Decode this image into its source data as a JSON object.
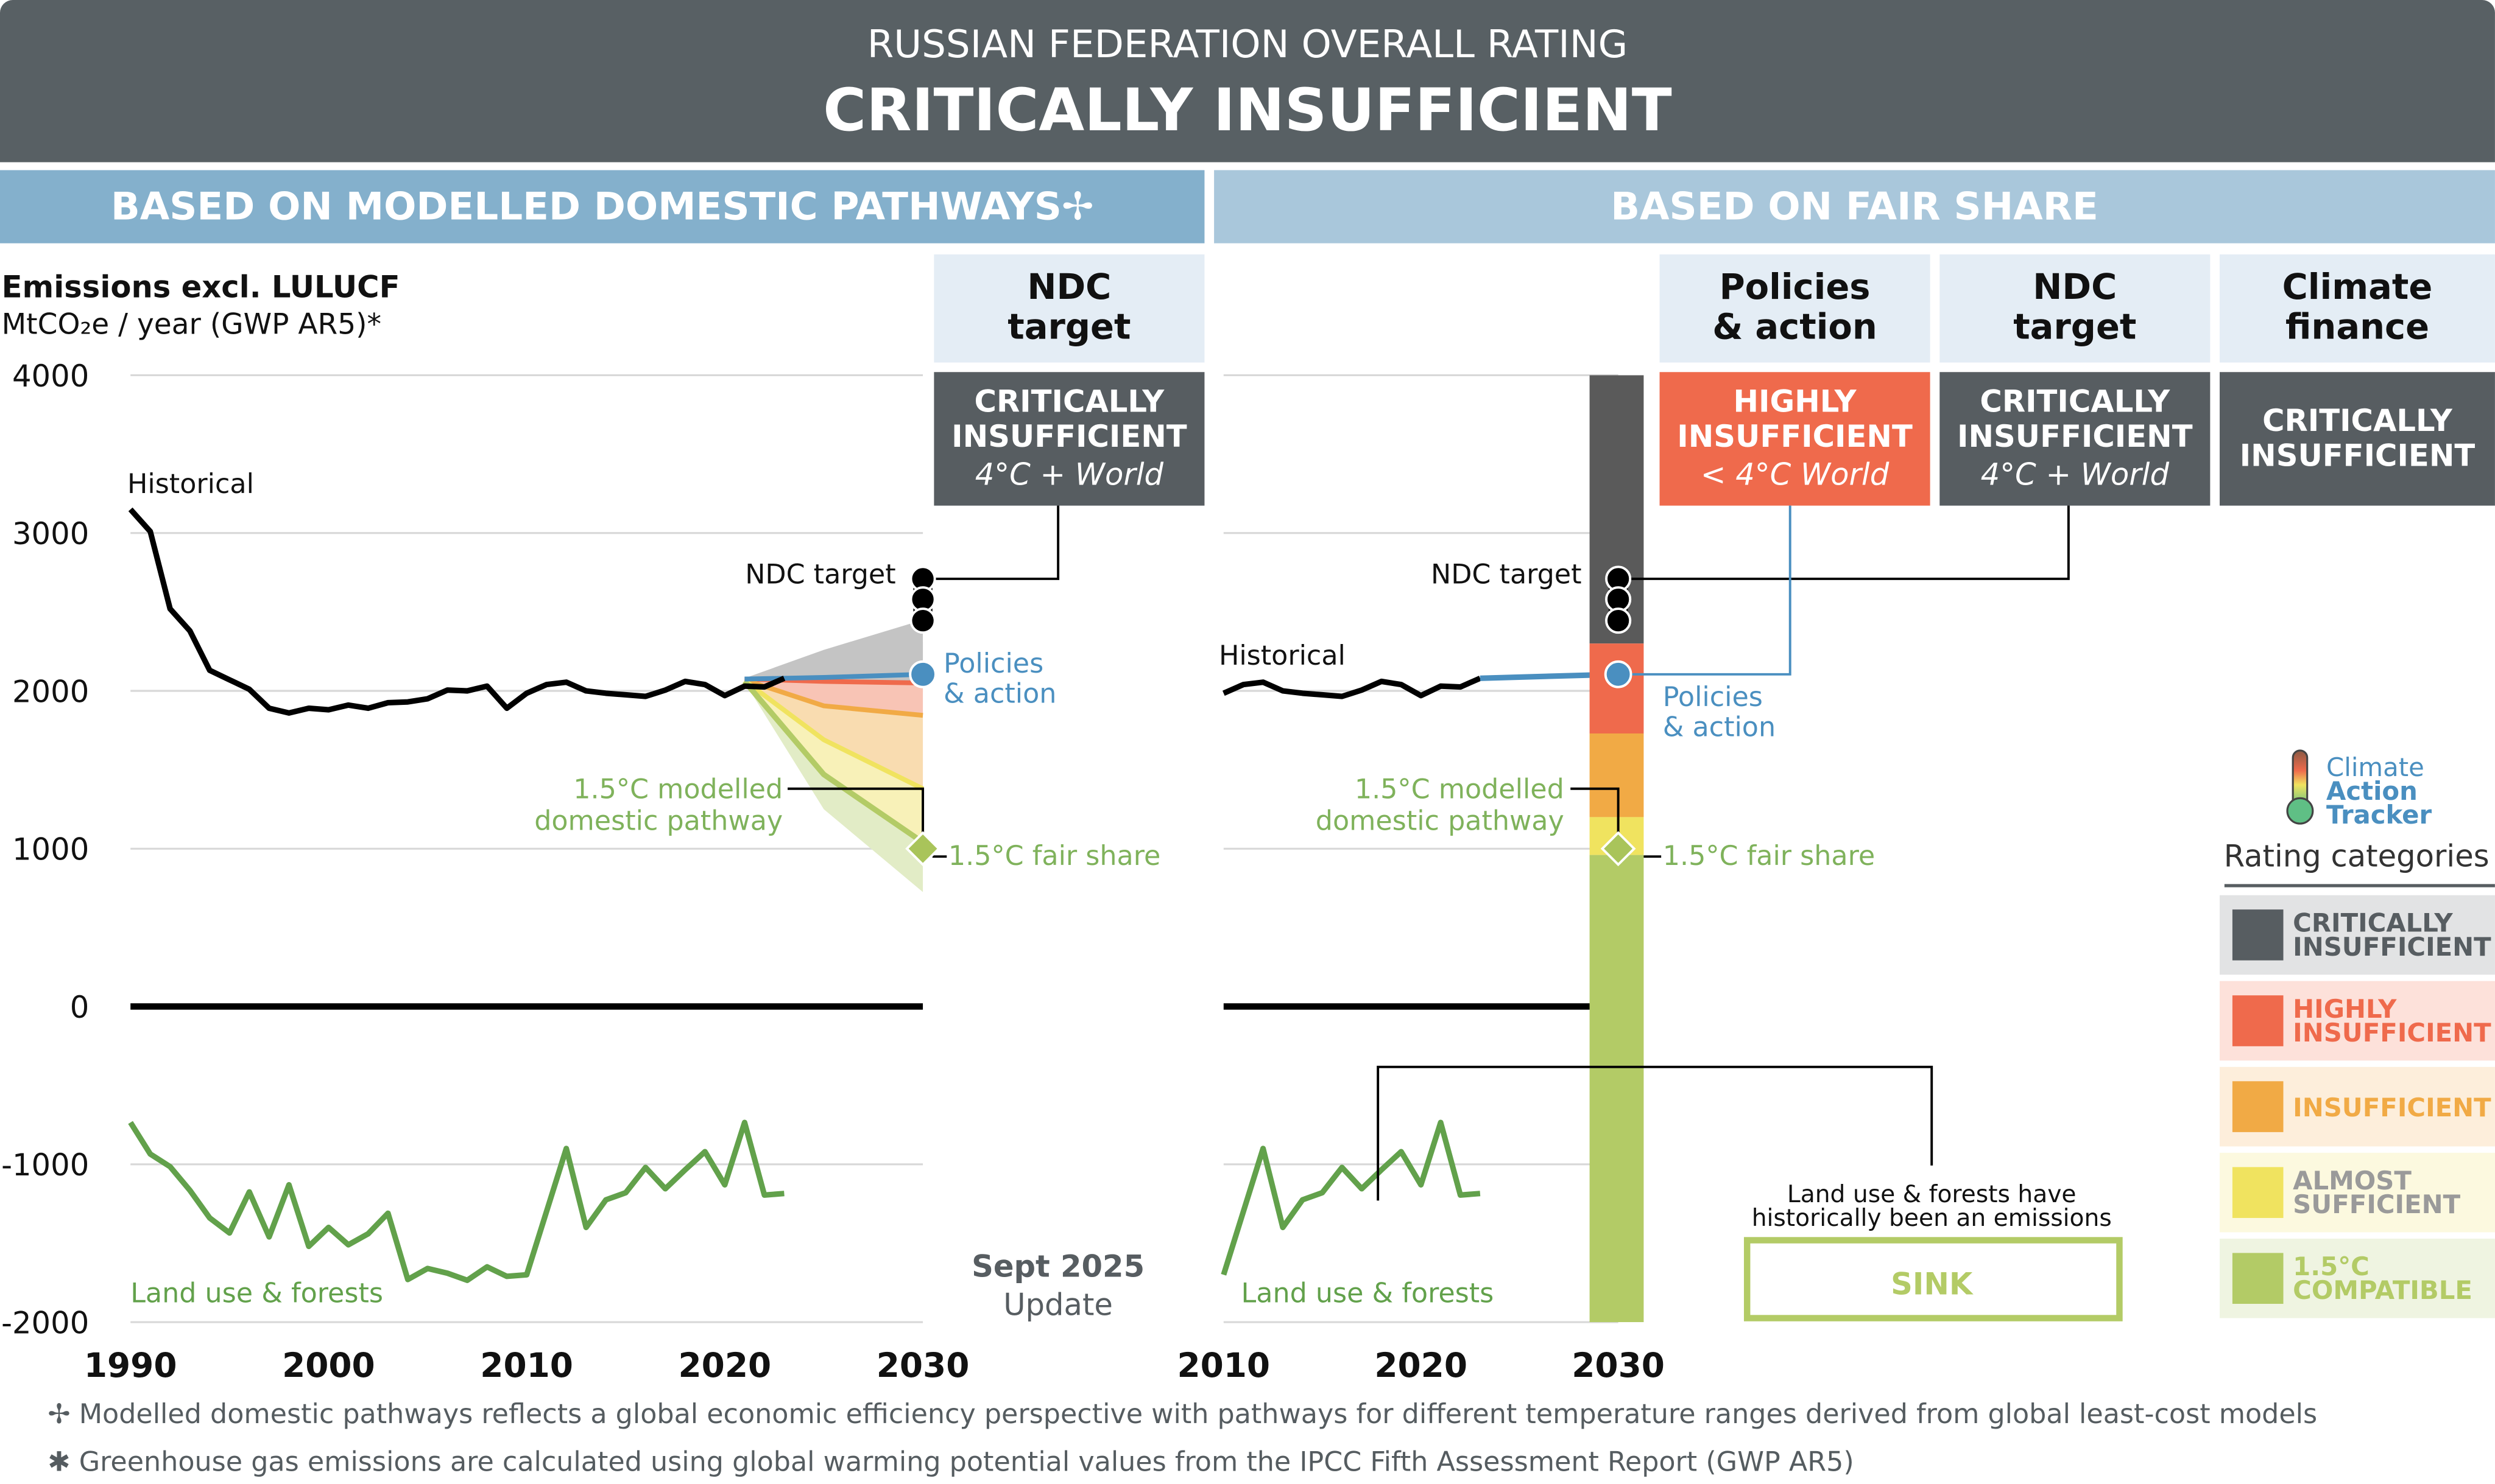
{
  "banner": {
    "line1": "RUSSIAN FEDERATION OVERALL RATING",
    "line2": "CRITICALLY INSUFFICIENT"
  },
  "sections": {
    "left": "BASED ON MODELLED DOMESTIC PATHWAYS✢",
    "right": "BASED ON FAIR SHARE"
  },
  "colors": {
    "banner": "#586064",
    "left_header": "#84b0cc",
    "right_header": "#a9c7db",
    "critically": "#575d61",
    "highly": "#ef6a4c",
    "insufficient": "#f1aa45",
    "almost": "#f0e35f",
    "compatible": "#b3cb66",
    "policies": "#4a8fc0",
    "history": "#000000",
    "lulucf": "#62a14b"
  },
  "columns": [
    {
      "title_l1": "NDC",
      "title_l2": "target",
      "rating_l1": "CRITICALLY",
      "rating_l2": "INSUFFICIENT",
      "rating_sub": "4°C + World"
    },
    {
      "title_l1": "Policies",
      "title_l2": "& action",
      "rating_l1": "HIGHLY",
      "rating_l2": "INSUFFICIENT",
      "rating_sub": "< 4°C World"
    },
    {
      "title_l1": "NDC",
      "title_l2": "target",
      "rating_l1": "CRITICALLY",
      "rating_l2": "INSUFFICIENT",
      "rating_sub": "4°C + World"
    },
    {
      "title_l1": "Climate",
      "title_l2": "finance",
      "rating_l1": "CRITICALLY",
      "rating_l2": "INSUFFICIENT"
    }
  ],
  "axis": {
    "title": "Emissions excl. LULUCF",
    "unit": "MtCO₂e / year (GWP AR5)*"
  },
  "labels": {
    "historical": "Historical",
    "ndc_target": "NDC target",
    "policies_l1": "Policies",
    "policies_l2": "& action",
    "modelled_l1": "1.5°C modelled",
    "modelled_l2": "domestic pathway",
    "fair_share": "1.5°C fair share",
    "land_use": "Land use & forests",
    "update_l1": "Sept 2025",
    "update_l2": "Update",
    "sink_note_l1": "Land use & forests have",
    "sink_note_l2": "historically been an emissions",
    "sink": "SINK"
  },
  "logo": {
    "l1": "Climate",
    "l2": "Action",
    "l3": "Tracker"
  },
  "legend": {
    "title": "Rating categories",
    "items": [
      {
        "l1": "CRITICALLY",
        "l2": "INSUFFICIENT",
        "color": "#575d61",
        "bg": "#e2e3e4",
        "text": "#575d61"
      },
      {
        "l1": "HIGHLY",
        "l2": "INSUFFICIENT",
        "color": "#ef6a4c",
        "bg": "#fde1da",
        "text": "#ef6a4c"
      },
      {
        "l1": "INSUFFICIENT",
        "l2": "",
        "color": "#f1aa45",
        "bg": "#fdeedb",
        "text": "#f1aa45"
      },
      {
        "l1": "ALMOST",
        "l2": "SUFFICIENT",
        "color": "#f0e35f",
        "bg": "#fcf9df",
        "text": "#9a9a9a"
      },
      {
        "l1": "1.5°C",
        "l2": "COMPATIBLE",
        "color": "#b3cb66",
        "bg": "#eff4e1",
        "text": "#b3cb66"
      }
    ]
  },
  "footnotes": [
    {
      "mark": "✢",
      "text": "Modelled domestic pathways reflects a global economic efficiency perspective with pathways for different temperature ranges derived from global least-cost models"
    },
    {
      "mark": "✱",
      "text": "Greenhouse gas emissions are calculated using global warming potential values from the IPCC Fifth Assessment Report (GWP AR5)"
    }
  ],
  "chart_data": [
    {
      "type": "line",
      "ylim": [
        -2000,
        4000
      ],
      "yticks": [
        4000,
        3000,
        2000,
        1000,
        0,
        -1000,
        -2000
      ],
      "xlim": [
        1990,
        2030
      ],
      "xticks": [
        1990,
        2000,
        2010,
        2020,
        2030
      ],
      "grid": true,
      "historical": {
        "name": "Historical",
        "years": [
          1990,
          1991,
          1992,
          1993,
          1994,
          1995,
          1996,
          1997,
          1998,
          1999,
          2000,
          2001,
          2002,
          2003,
          2004,
          2005,
          2006,
          2007,
          2008,
          2009,
          2010,
          2011,
          2012,
          2013,
          2014,
          2015,
          2016,
          2017,
          2018,
          2019,
          2020,
          2021,
          2022,
          2023
        ],
        "values": [
          3150,
          3010,
          2520,
          2380,
          2130,
          2070,
          2010,
          1890,
          1860,
          1890,
          1880,
          1910,
          1890,
          1925,
          1930,
          1950,
          2005,
          2000,
          2030,
          1890,
          1985,
          2040,
          2055,
          2000,
          1985,
          1975,
          1965,
          2005,
          2060,
          2040,
          1970,
          2030,
          2025,
          2080
        ]
      },
      "land_use": {
        "name": "Land use & forests",
        "years": [
          1990,
          1991,
          1992,
          1993,
          1994,
          1995,
          1996,
          1997,
          1998,
          1999,
          2000,
          2001,
          2002,
          2003,
          2004,
          2005,
          2006,
          2007,
          2008,
          2009,
          2010,
          2011,
          2012,
          2013,
          2014,
          2015,
          2016,
          2017,
          2018,
          2019,
          2020,
          2021,
          2022,
          2023
        ],
        "values": [
          -735,
          -935,
          -1015,
          -1165,
          -1340,
          -1435,
          -1175,
          -1460,
          -1130,
          -1520,
          -1400,
          -1510,
          -1440,
          -1310,
          -1730,
          -1660,
          -1690,
          -1735,
          -1650,
          -1710,
          -1700,
          -1300,
          -900,
          -1400,
          -1225,
          -1180,
          -1020,
          -1155,
          -1035,
          -920,
          -1130,
          -735,
          -1195,
          -1185
        ]
      },
      "pathway_years": [
        2021,
        2025,
        2030
      ],
      "boundaries": {
        "critically_top": [
          2080,
          2260,
          2450
        ],
        "highly_top": [
          2075,
          2060,
          2050
        ],
        "insufficient_top": [
          2070,
          1905,
          1845
        ],
        "almost_top": [
          2065,
          1690,
          1380
        ],
        "compatible_top": [
          2060,
          1470,
          1040
        ],
        "compatible_bottom": [
          2055,
          1250,
          725
        ]
      },
      "policies_action": {
        "years": [
          2021,
          2025,
          2030
        ],
        "values": [
          2075,
          2085,
          2105
        ]
      },
      "ndc_target_2030": [
        2710,
        2580,
        2445
      ],
      "fair_share_2030": 1000
    },
    {
      "type": "bar",
      "ylim": [
        -2000,
        4000
      ],
      "xlim": [
        2010,
        2030
      ],
      "xticks": [
        2010,
        2020,
        2030
      ],
      "fair_share_bar_2030": {
        "critically_above": 2300,
        "highly_above": 1730,
        "insufficient_above": 1200,
        "almost_above": 960,
        "compatible_floor": -2000
      },
      "policies_action": {
        "years": [
          2023,
          2030
        ],
        "values": [
          2080,
          2105
        ]
      },
      "ndc_target_2030": [
        2710,
        2580,
        2445
      ],
      "fair_share_2030": 1000
    }
  ]
}
